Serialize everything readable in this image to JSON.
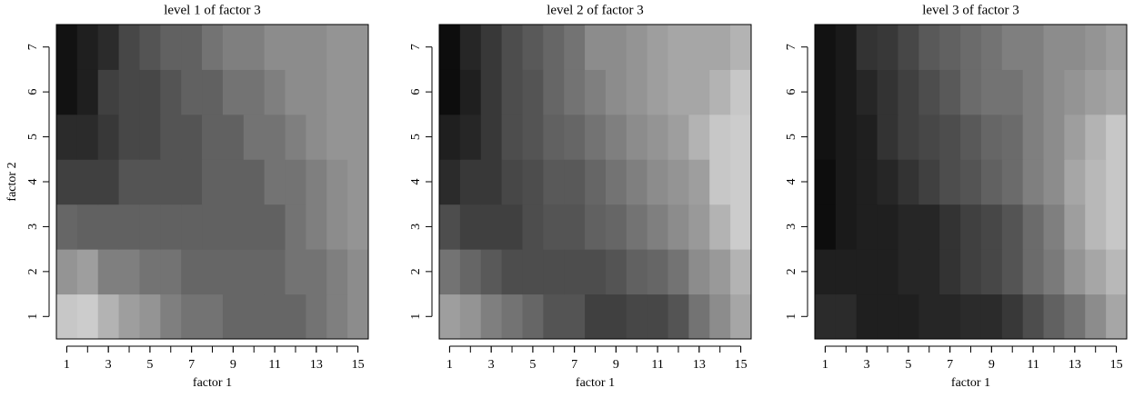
{
  "chart_data": [
    {
      "type": "heatmap",
      "title": "level 1 of factor 3",
      "xlabel": "factor 1",
      "ylabel": "factor 2",
      "x": [
        1,
        2,
        3,
        4,
        5,
        6,
        7,
        8,
        9,
        10,
        11,
        12,
        13,
        14,
        15
      ],
      "y": [
        1,
        2,
        3,
        4,
        5,
        6,
        7
      ],
      "xlim": [
        0.5,
        15.5
      ],
      "ylim": [
        0.5,
        7.5
      ],
      "xticks": [
        1,
        3,
        5,
        7,
        9,
        11,
        13,
        15
      ],
      "yticks": [
        1,
        2,
        3,
        4,
        5,
        6,
        7
      ],
      "values": [
        [
          78,
          80,
          70,
          62,
          58,
          50,
          45,
          45,
          40,
          40,
          40,
          40,
          45,
          50,
          55
        ],
        [
          58,
          62,
          50,
          50,
          45,
          45,
          40,
          40,
          40,
          40,
          40,
          45,
          45,
          50,
          55
        ],
        [
          40,
          38,
          38,
          38,
          38,
          38,
          38,
          38,
          38,
          38,
          38,
          45,
          50,
          55,
          58
        ],
        [
          25,
          25,
          25,
          33,
          33,
          33,
          33,
          38,
          38,
          38,
          45,
          45,
          50,
          55,
          58
        ],
        [
          17,
          17,
          22,
          28,
          28,
          33,
          33,
          38,
          38,
          45,
          45,
          50,
          55,
          58,
          58
        ],
        [
          7,
          12,
          25,
          28,
          28,
          33,
          38,
          38,
          45,
          45,
          50,
          55,
          55,
          58,
          58
        ],
        [
          7,
          12,
          17,
          28,
          33,
          38,
          38,
          45,
          50,
          50,
          55,
          55,
          55,
          58,
          58
        ]
      ]
    },
    {
      "type": "heatmap",
      "title": "level 2 of factor 3",
      "xlabel": "factor 1",
      "x": [
        1,
        2,
        3,
        4,
        5,
        6,
        7,
        8,
        9,
        10,
        11,
        12,
        13,
        14,
        15
      ],
      "y": [
        1,
        2,
        3,
        4,
        5,
        6,
        7
      ],
      "xlim": [
        0.5,
        15.5
      ],
      "ylim": [
        0.5,
        7.5
      ],
      "xticks": [
        1,
        3,
        5,
        7,
        9,
        11,
        13,
        15
      ],
      "yticks": [
        1,
        2,
        3,
        4,
        5,
        6,
        7
      ],
      "values": [
        [
          62,
          58,
          50,
          45,
          40,
          33,
          33,
          25,
          25,
          28,
          28,
          33,
          45,
          55,
          65
        ],
        [
          45,
          40,
          35,
          30,
          30,
          30,
          30,
          30,
          33,
          38,
          40,
          45,
          55,
          60,
          70
        ],
        [
          30,
          25,
          25,
          25,
          30,
          33,
          33,
          38,
          40,
          45,
          50,
          55,
          60,
          70,
          80
        ],
        [
          17,
          22,
          22,
          28,
          30,
          35,
          35,
          40,
          45,
          50,
          55,
          58,
          62,
          78,
          80
        ],
        [
          12,
          15,
          22,
          30,
          33,
          38,
          40,
          45,
          50,
          55,
          58,
          62,
          70,
          78,
          80
        ],
        [
          5,
          12,
          22,
          30,
          33,
          40,
          45,
          50,
          55,
          58,
          62,
          65,
          65,
          70,
          78
        ],
        [
          5,
          15,
          22,
          30,
          35,
          40,
          45,
          55,
          55,
          58,
          62,
          65,
          65,
          65,
          70
        ]
      ]
    },
    {
      "type": "heatmap",
      "title": "level 3 of factor 3",
      "xlabel": "factor 1",
      "x": [
        1,
        2,
        3,
        4,
        5,
        6,
        7,
        8,
        9,
        10,
        11,
        12,
        13,
        14,
        15
      ],
      "y": [
        1,
        2,
        3,
        4,
        5,
        6,
        7
      ],
      "xlim": [
        0.5,
        15.5
      ],
      "ylim": [
        0.5,
        7.5
      ],
      "xticks": [
        1,
        3,
        5,
        7,
        9,
        11,
        13,
        15
      ],
      "yticks": [
        1,
        2,
        3,
        4,
        5,
        6,
        7
      ],
      "values": [
        [
          17,
          17,
          12,
          12,
          12,
          15,
          15,
          17,
          17,
          22,
          30,
          38,
          45,
          55,
          65
        ],
        [
          12,
          12,
          12,
          12,
          15,
          15,
          20,
          25,
          28,
          33,
          42,
          48,
          58,
          65,
          72
        ],
        [
          5,
          10,
          12,
          12,
          15,
          15,
          20,
          25,
          28,
          33,
          42,
          50,
          62,
          72,
          78
        ],
        [
          5,
          10,
          12,
          15,
          20,
          25,
          30,
          33,
          38,
          42,
          50,
          55,
          65,
          72,
          78
        ],
        [
          7,
          10,
          12,
          20,
          25,
          28,
          30,
          35,
          40,
          42,
          50,
          55,
          62,
          70,
          78
        ],
        [
          7,
          10,
          15,
          20,
          25,
          30,
          35,
          42,
          45,
          45,
          50,
          55,
          58,
          62,
          65
        ],
        [
          7,
          10,
          20,
          22,
          28,
          35,
          38,
          42,
          45,
          50,
          50,
          55,
          55,
          58,
          62
        ]
      ]
    }
  ]
}
